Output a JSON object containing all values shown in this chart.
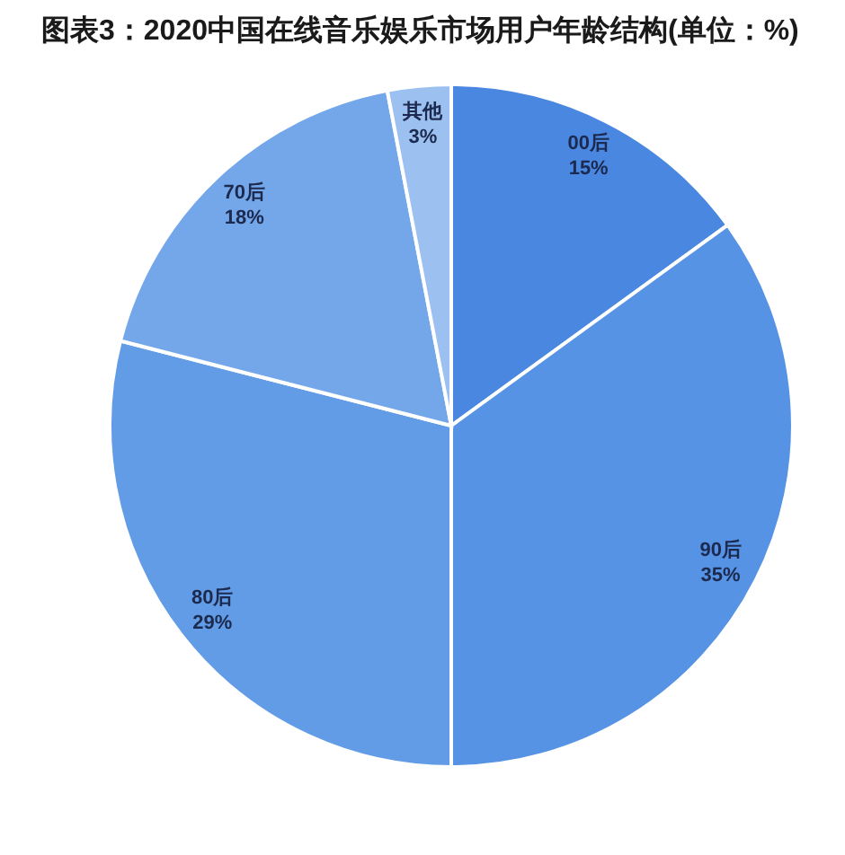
{
  "chart_data": {
    "type": "pie",
    "title": "图表3：2020中国在线音乐娱乐市场用户年龄结构(单位：%)",
    "categories": [
      "00后",
      "90后",
      "80后",
      "70后",
      "其他"
    ],
    "values": [
      15,
      35,
      29,
      18,
      3
    ],
    "colors": [
      "#4a87e0",
      "#5793e4",
      "#639ce6",
      "#74a7ea",
      "#9cc0f0"
    ],
    "value_labels": [
      "15%",
      "35%",
      "29%",
      "18%",
      "3%"
    ]
  }
}
